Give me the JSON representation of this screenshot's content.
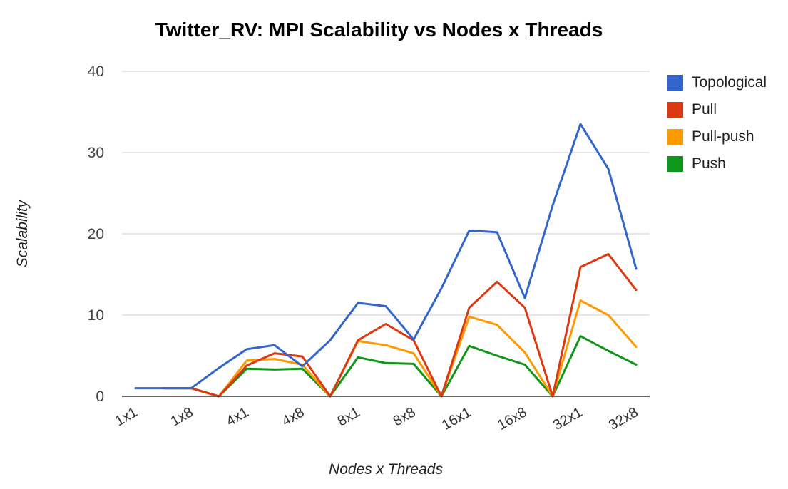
{
  "chart_data": {
    "type": "line",
    "title": "Twitter_RV: MPI Scalability vs Nodes x Threads",
    "xlabel": "Nodes x Threads",
    "ylabel": "Scalability",
    "ylim": [
      0,
      40
    ],
    "yticks": [
      "0",
      "10",
      "20",
      "30",
      "40"
    ],
    "x_tick_labels": [
      "1x1",
      "1x8",
      "4x1",
      "4x8",
      "8x1",
      "8x8",
      "16x1",
      "16x8",
      "32x1",
      "32x8"
    ],
    "grid": true,
    "legend_position": "right",
    "series": [
      {
        "name": "Topological",
        "color": "#3366cc",
        "values": [
          1,
          1,
          1,
          3.5,
          5.8,
          6.3,
          3.7,
          6.9,
          11.5,
          11.1,
          7.0,
          13.3,
          20.4,
          20.2,
          12.1,
          23.5,
          33.5,
          28.0,
          15.7
        ]
      },
      {
        "name": "Pull",
        "color": "#dc3912",
        "values": [
          null,
          1,
          1,
          0,
          3.8,
          5.3,
          4.9,
          0,
          6.9,
          8.9,
          6.9,
          0,
          10.9,
          14.1,
          10.9,
          0,
          15.9,
          17.5,
          13.1
        ]
      },
      {
        "name": "Pull-push",
        "color": "#ff9900",
        "values": [
          null,
          1,
          1,
          0,
          4.4,
          4.6,
          3.9,
          0,
          6.8,
          6.3,
          5.3,
          0,
          9.8,
          8.8,
          5.4,
          0,
          11.8,
          10.0,
          6.1
        ]
      },
      {
        "name": "Push",
        "color": "#109618",
        "values": [
          null,
          1,
          1,
          0,
          3.4,
          3.3,
          3.4,
          0,
          4.8,
          4.1,
          4.0,
          0,
          6.2,
          5.0,
          3.9,
          0,
          7.4,
          5.6,
          3.9
        ]
      }
    ]
  }
}
